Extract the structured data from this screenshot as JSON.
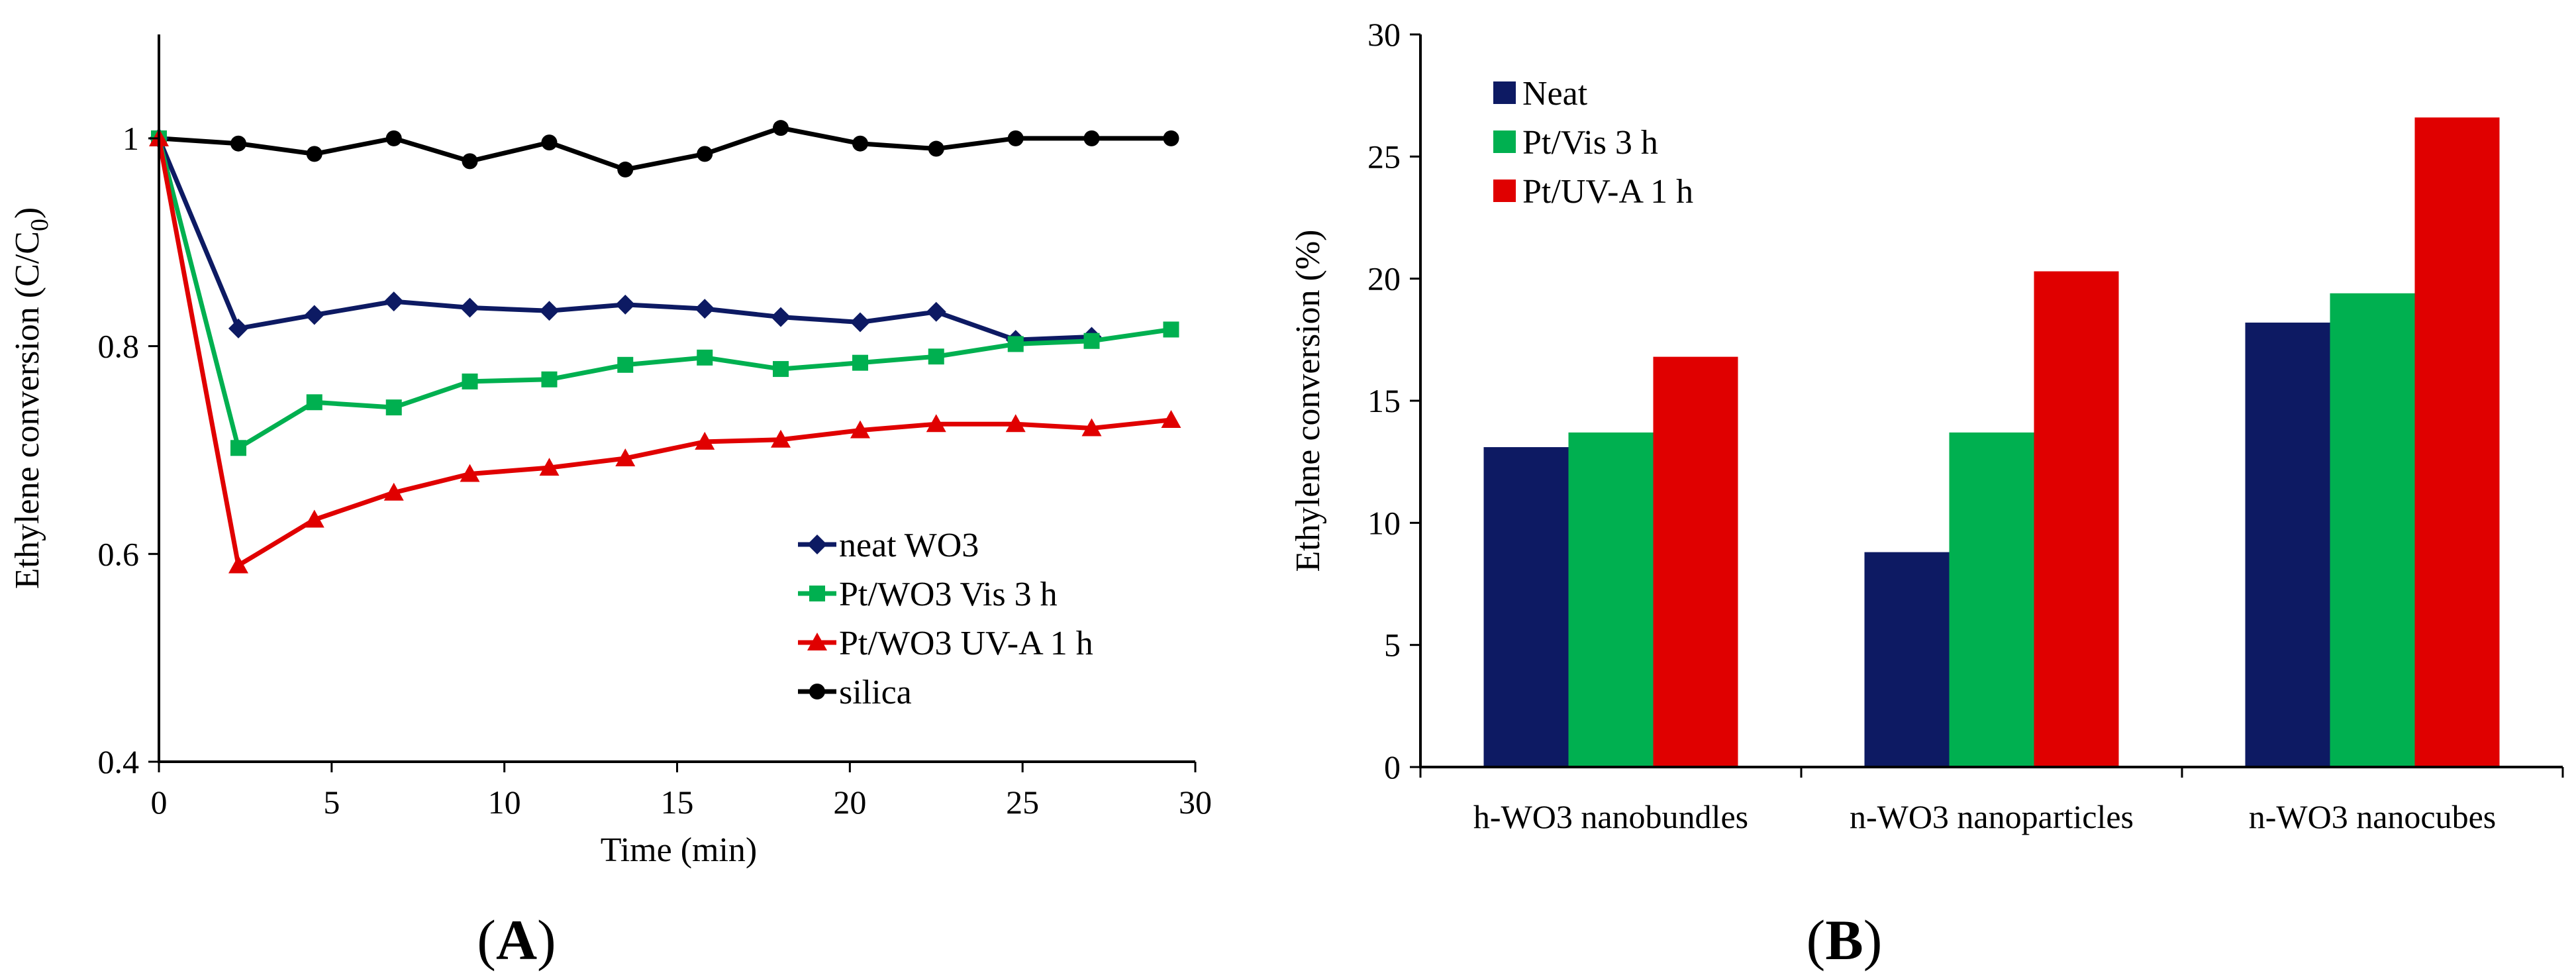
{
  "chart_data": [
    {
      "type": "line",
      "panel_label": "A",
      "xlabel": "Time (min)",
      "ylabel_main": "Ethylene conversion (C/C",
      "ylabel_sub": "0",
      "ylabel_close": ")",
      "xlim": [
        0,
        30
      ],
      "ylim": [
        0.4,
        1.1
      ],
      "xticks": [
        0,
        5,
        10,
        15,
        20,
        25,
        30
      ],
      "yticks": [
        0.4,
        0.6,
        0.8,
        1
      ],
      "ytick_labels": [
        "0.4",
        "0.6",
        "0.8",
        "1"
      ],
      "grid": false,
      "legend_position": "bottom-right",
      "series": [
        {
          "name": "neat WO3",
          "color": "#0d1a63",
          "marker": "diamond",
          "x": [
            0,
            2.3,
            4.5,
            6.8,
            9.0,
            11.3,
            13.5,
            15.8,
            18.0,
            20.3,
            22.5,
            24.8,
            27.0
          ],
          "y": [
            1.0,
            0.817,
            0.83,
            0.843,
            0.837,
            0.834,
            0.84,
            0.836,
            0.828,
            0.823,
            0.833,
            0.806,
            0.809
          ]
        },
        {
          "name": "Pt/WO3 Vis 3 h",
          "color": "#00b050",
          "marker": "square",
          "x": [
            0,
            2.3,
            4.5,
            6.8,
            9.0,
            11.3,
            13.5,
            15.8,
            18.0,
            20.3,
            22.5,
            24.8,
            27.0,
            29.3
          ],
          "y": [
            1.0,
            0.702,
            0.746,
            0.741,
            0.766,
            0.768,
            0.782,
            0.789,
            0.778,
            0.784,
            0.79,
            0.802,
            0.805,
            0.816
          ]
        },
        {
          "name": "Pt/WO3 UV-A 1 h",
          "color": "#e00000",
          "marker": "triangle",
          "x": [
            0,
            2.3,
            4.5,
            6.8,
            9.0,
            11.3,
            13.5,
            15.8,
            18.0,
            20.3,
            22.5,
            24.8,
            27.0,
            29.3
          ],
          "y": [
            1.0,
            0.589,
            0.633,
            0.659,
            0.677,
            0.683,
            0.692,
            0.708,
            0.71,
            0.719,
            0.725,
            0.725,
            0.721,
            0.729
          ]
        },
        {
          "name": "silica",
          "color": "#000000",
          "marker": "circle",
          "x": [
            0,
            2.3,
            4.5,
            6.8,
            9.0,
            11.3,
            13.5,
            15.8,
            18.0,
            20.3,
            22.5,
            24.8,
            27.0,
            29.3
          ],
          "y": [
            1.0,
            0.995,
            0.985,
            1.0,
            0.978,
            0.996,
            0.97,
            0.985,
            1.01,
            0.995,
            0.99,
            1.0,
            1.0,
            1.0
          ]
        }
      ]
    },
    {
      "type": "bar",
      "panel_label": "B",
      "xlabel": "",
      "ylabel": "Ethylene conversion (%)",
      "ylim": [
        0,
        30
      ],
      "yticks": [
        0,
        5,
        10,
        15,
        20,
        25,
        30
      ],
      "grid": false,
      "legend_position": "top-left",
      "categories": [
        "h-WO3 nanobundles",
        "n-WO3 nanoparticles",
        "n-WO3 nanocubes"
      ],
      "series": [
        {
          "name": "Neat",
          "color": "#0d1a63",
          "values": [
            13.1,
            8.8,
            18.2
          ]
        },
        {
          "name": "Pt/Vis 3 h",
          "color": "#00b050",
          "values": [
            13.7,
            13.7,
            19.4
          ]
        },
        {
          "name": "Pt/UV-A 1 h",
          "color": "#e00000",
          "values": [
            16.8,
            20.3,
            26.6
          ]
        }
      ]
    }
  ]
}
